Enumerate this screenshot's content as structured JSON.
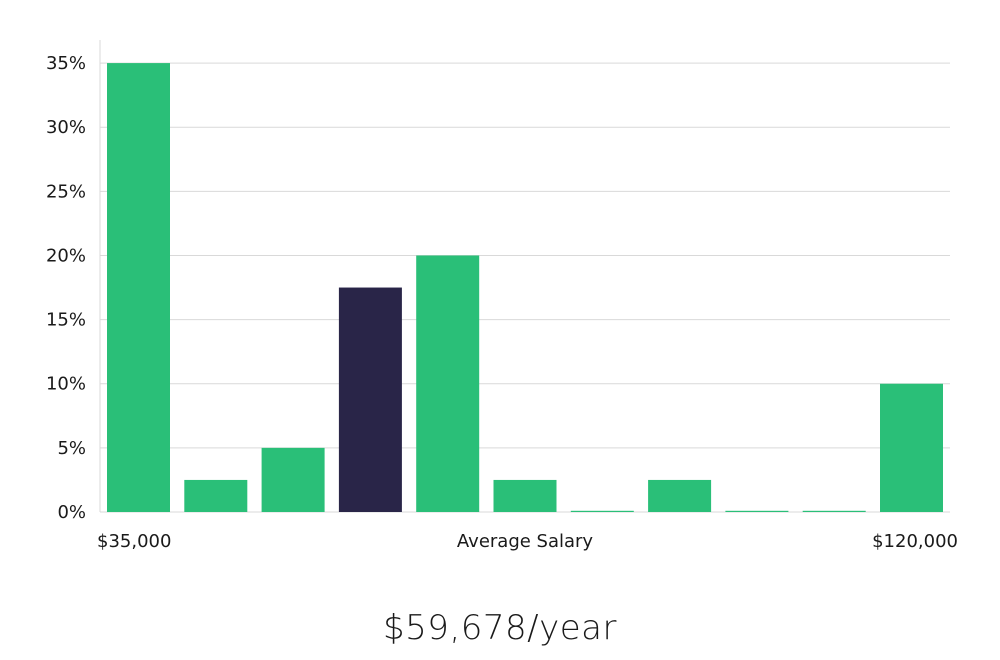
{
  "chart_data": {
    "type": "bar",
    "title": "",
    "xlabel": "Average Salary",
    "ylabel": "",
    "x_range_labels": {
      "min": "$35,000",
      "max": "$120,000"
    },
    "y_ticks": [
      "0%",
      "5%",
      "10%",
      "15%",
      "20%",
      "25%",
      "30%",
      "35%"
    ],
    "ylim": [
      0,
      36.8
    ],
    "values": [
      35,
      2.5,
      5,
      17.5,
      20,
      2.5,
      0,
      2.5,
      0,
      0,
      10
    ],
    "highlight_index": 3,
    "colors": {
      "bar": "#2abf78",
      "highlight": "#292548"
    }
  },
  "summary": {
    "average_salary": "$59,678/year"
  }
}
